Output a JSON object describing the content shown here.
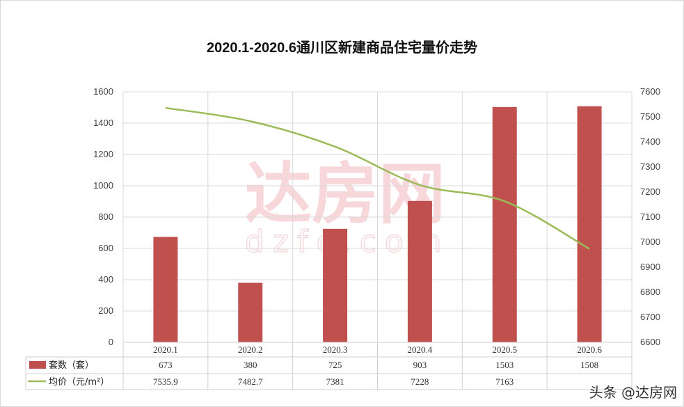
{
  "chart_data": {
    "type": "bar",
    "title": "2020.1-2020.6通川区新建商品住宅量价走势",
    "categories": [
      "2020.1",
      "2020.2",
      "2020.3",
      "2020.4",
      "2020.5",
      "2020.6"
    ],
    "series": [
      {
        "name": "套数（套）",
        "type": "bar",
        "axis": "left",
        "color": "#c0504d",
        "values": [
          673,
          380,
          725,
          903,
          1503,
          1508
        ],
        "labels": [
          "673",
          "380",
          "725",
          "903",
          "1503",
          "1508"
        ]
      },
      {
        "name": "均价（元/m²）",
        "type": "line",
        "axis": "right",
        "color": "#9bbb59",
        "values": [
          7535.9,
          7482.7,
          7381,
          7228,
          7163,
          6973
        ],
        "labels": [
          "7535.9",
          "7482.7",
          "7381",
          "7228",
          "7163",
          ""
        ]
      }
    ],
    "y_left": {
      "min": 0,
      "max": 1600,
      "ticks": [
        "0",
        "200",
        "400",
        "600",
        "800",
        "1000",
        "1200",
        "1400",
        "1600"
      ]
    },
    "y_right": {
      "min": 6600,
      "max": 7600,
      "ticks": [
        "6600",
        "6700",
        "6800",
        "6900",
        "7000",
        "7100",
        "7200",
        "7300",
        "7400",
        "7500",
        "7600"
      ]
    },
    "grid": true,
    "legend": "data-table",
    "watermark": {
      "text": "达房网",
      "subtext": "dzfc.com"
    }
  },
  "credit": "头条 @达房网"
}
